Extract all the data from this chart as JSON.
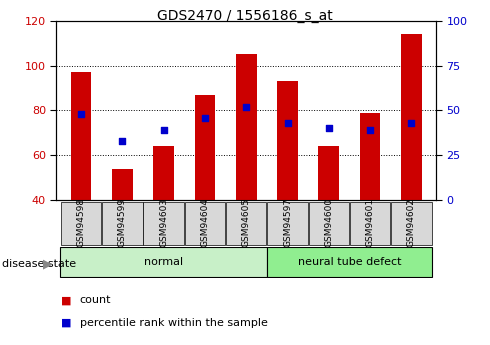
{
  "title": "GDS2470 / 1556186_s_at",
  "samples": [
    "GSM94598",
    "GSM94599",
    "GSM94603",
    "GSM94604",
    "GSM94605",
    "GSM94597",
    "GSM94600",
    "GSM94601",
    "GSM94602"
  ],
  "count_values": [
    97,
    54,
    64,
    87,
    105,
    93,
    64,
    79,
    114
  ],
  "percentile_values": [
    48,
    33,
    39,
    46,
    52,
    43,
    40,
    39,
    43
  ],
  "ylim_left": [
    40,
    120
  ],
  "ylim_right": [
    0,
    100
  ],
  "yticks_left": [
    40,
    60,
    80,
    100,
    120
  ],
  "yticks_right": [
    0,
    25,
    50,
    75,
    100
  ],
  "groups": [
    {
      "start": 0,
      "end": 4,
      "label": "normal",
      "color": "#c8f0c8"
    },
    {
      "start": 5,
      "end": 8,
      "label": "neural tube defect",
      "color": "#90ee90"
    }
  ],
  "bar_color": "#cc0000",
  "dot_color": "#0000cc",
  "bar_width": 0.5,
  "tick_label_color_left": "#cc0000",
  "tick_label_color_right": "#0000cc",
  "legend_count_label": "count",
  "legend_pct_label": "percentile rank within the sample",
  "disease_state_label": "disease state"
}
